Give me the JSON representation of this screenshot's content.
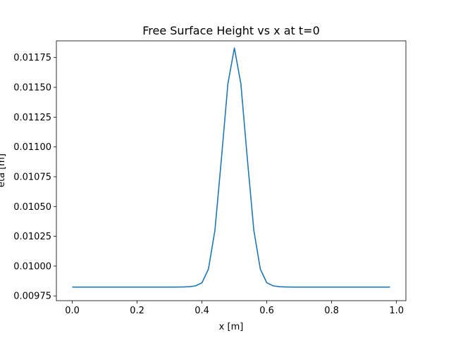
{
  "chart_data": {
    "type": "line",
    "title": "Free Surface Height vs x at t=0",
    "xlabel": "x [m]",
    "ylabel": "eta [m]",
    "xlim": [
      -0.049,
      1.029
    ],
    "ylim": [
      0.00971,
      0.01189
    ],
    "x_ticks": [
      0.0,
      0.2,
      0.4,
      0.6,
      0.8,
      1.0
    ],
    "x_tick_labels": [
      "0.0",
      "0.2",
      "0.4",
      "0.6",
      "0.8",
      "1.0"
    ],
    "y_ticks": [
      0.00975,
      0.01,
      0.01025,
      0.0105,
      0.01075,
      0.011,
      0.01125,
      0.0115,
      0.01175
    ],
    "y_tick_labels": [
      "0.00975",
      "0.01000",
      "0.01025",
      "0.01050",
      "0.01075",
      "0.01100",
      "0.01125",
      "0.01150",
      "0.01175"
    ],
    "grid": false,
    "legend": "none",
    "line_color": "#1f77b4",
    "series": [
      {
        "x": [
          0.0,
          0.02,
          0.04,
          0.06,
          0.08,
          0.1,
          0.12,
          0.14,
          0.16,
          0.18,
          0.2,
          0.22,
          0.24,
          0.26,
          0.28,
          0.3,
          0.32,
          0.34,
          0.36,
          0.38,
          0.4,
          0.42,
          0.44,
          0.46,
          0.48,
          0.5,
          0.52,
          0.54,
          0.56,
          0.58,
          0.6,
          0.62,
          0.64,
          0.66,
          0.68,
          0.7,
          0.72,
          0.74,
          0.76,
          0.78,
          0.8,
          0.82,
          0.84,
          0.86,
          0.88,
          0.9,
          0.92,
          0.94,
          0.96,
          0.98
        ],
        "y": [
          0.009824,
          0.009824,
          0.009824,
          0.009824,
          0.009824,
          0.009824,
          0.009824,
          0.009824,
          0.009824,
          0.009824,
          0.009824,
          0.009824,
          0.009824,
          0.009824,
          0.009824,
          0.009824,
          0.009824,
          0.009825,
          0.009827,
          0.009834,
          0.00986,
          0.009975,
          0.0103,
          0.0109,
          0.01153,
          0.01183,
          0.01153,
          0.0109,
          0.0103,
          0.009975,
          0.00986,
          0.009834,
          0.009827,
          0.009825,
          0.009824,
          0.009824,
          0.009824,
          0.009824,
          0.009824,
          0.009824,
          0.009824,
          0.009824,
          0.009824,
          0.009824,
          0.009824,
          0.009824,
          0.009824,
          0.009824,
          0.009824,
          0.009824
        ]
      }
    ]
  }
}
